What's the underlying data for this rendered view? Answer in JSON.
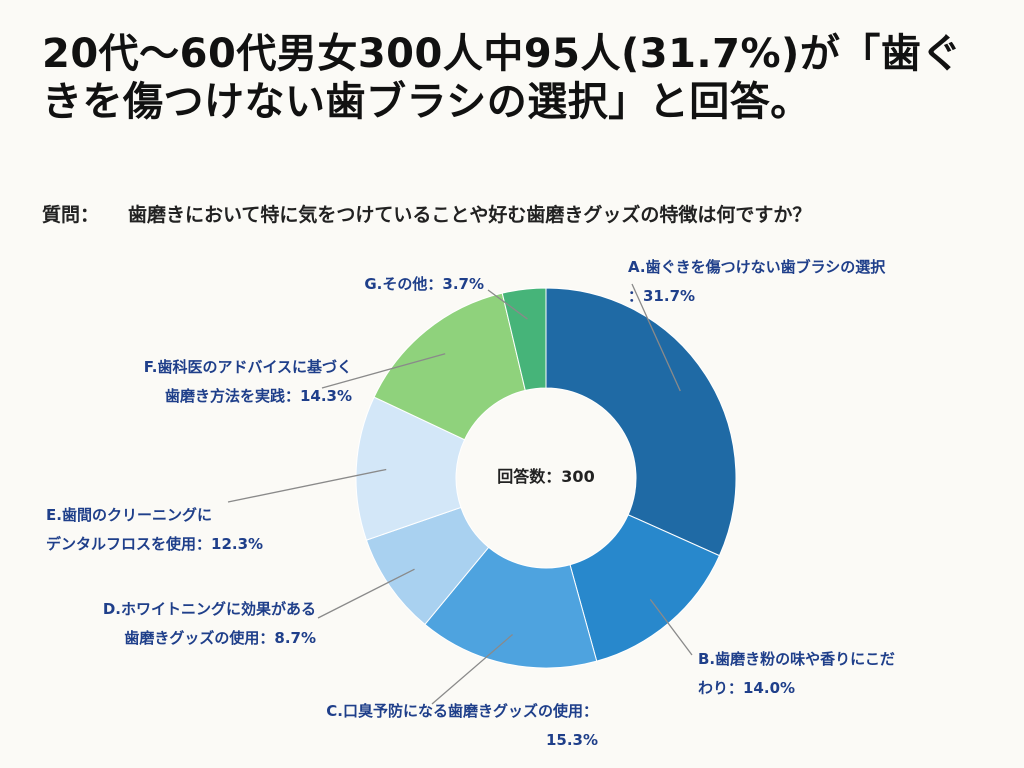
{
  "title": "20代〜60代男女300人中95人(31.7%)が「歯ぐきを傷つけない歯ブラシの選択」と回答。",
  "question": {
    "prefix": "質問：",
    "text": "歯磨きにおいて特に気をつけていることや好む歯磨きグッズの特徴は何ですか？"
  },
  "chart_data": {
    "type": "pie",
    "donut": true,
    "center_label": "回答数：300",
    "total": 300,
    "slices": [
      {
        "label_lines": [
          "A.歯ぐきを傷つけない歯ブラシの選択",
          "：31.7%"
        ],
        "value": 31.7,
        "color": "#1f6aa5"
      },
      {
        "label_lines": [
          "B.歯磨き粉の味や香りにこだ",
          "わり：14.0%"
        ],
        "value": 14.0,
        "color": "#2888cc"
      },
      {
        "label_lines": [
          "C.口臭予防になる歯磨きグッズの使用：",
          "15.3%"
        ],
        "value": 15.3,
        "color": "#4ea3df"
      },
      {
        "label_lines": [
          "D.ホワイトニングに効果がある",
          "歯磨きグッズの使用：8.7%"
        ],
        "value": 8.7,
        "color": "#a9d1f0"
      },
      {
        "label_lines": [
          "E.歯間のクリーニングに",
          "デンタルフロスを使用：12.3%"
        ],
        "value": 12.3,
        "color": "#d3e7f8"
      },
      {
        "label_lines": [
          "F.歯科医のアドバイスに基づく",
          "歯磨き方法を実践：14.3%"
        ],
        "value": 14.3,
        "color": "#8fd27c"
      },
      {
        "label_lines": [
          "G.その他：3.7%"
        ],
        "value": 3.7,
        "color": "#46b479"
      }
    ]
  }
}
